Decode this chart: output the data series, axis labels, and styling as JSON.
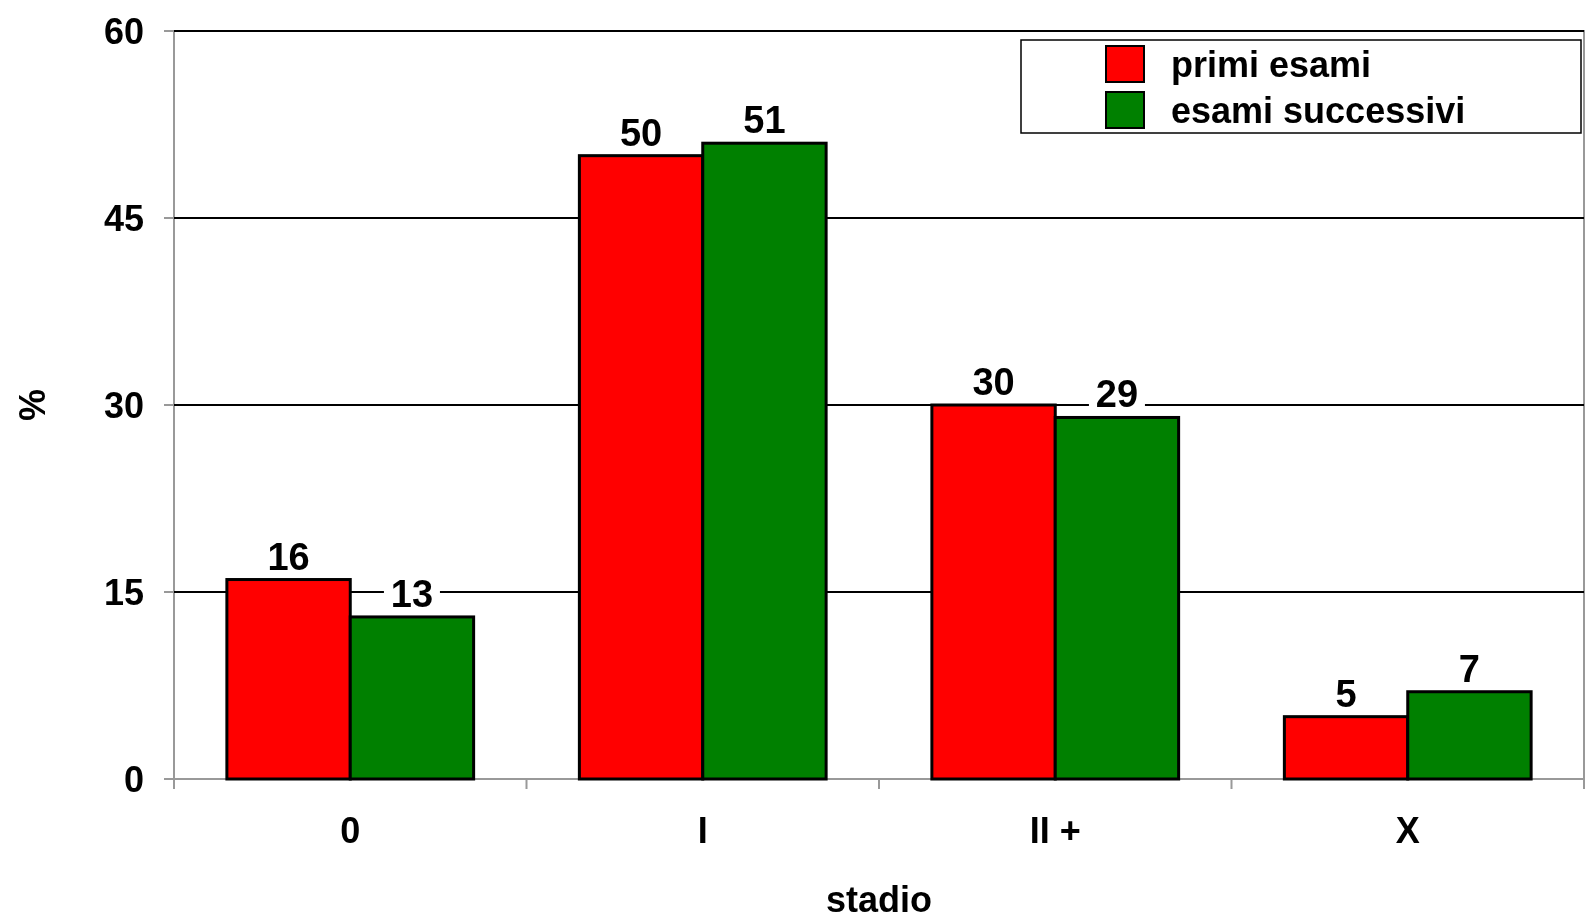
{
  "chart_data": {
    "type": "bar",
    "xlabel": "stadio",
    "ylabel": "%",
    "categories": [
      "0",
      "I",
      "II +",
      "X"
    ],
    "series": [
      {
        "name": "primi esami",
        "color": "#ff0000",
        "values": [
          16,
          50,
          30,
          5
        ]
      },
      {
        "name": "esami successivi",
        "color": "#008000",
        "values": [
          13,
          51,
          29,
          7
        ]
      }
    ],
    "ylim": [
      0,
      60
    ],
    "yticks": [
      0,
      15,
      30,
      45,
      60
    ],
    "grid": "y",
    "legend": "top right",
    "data_labels": true
  }
}
